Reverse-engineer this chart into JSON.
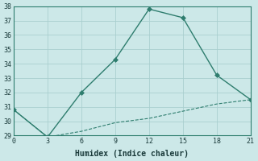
{
  "xlabel": "Humidex (Indice chaleur)",
  "xlim": [
    0,
    21
  ],
  "ylim": [
    29,
    38
  ],
  "xticks": [
    0,
    3,
    6,
    9,
    12,
    15,
    18,
    21
  ],
  "yticks": [
    29,
    30,
    31,
    32,
    33,
    34,
    35,
    36,
    37,
    38
  ],
  "line1_x": [
    0,
    3,
    6,
    9,
    12,
    15,
    18,
    21
  ],
  "line1_y": [
    30.8,
    28.9,
    32.0,
    34.3,
    37.8,
    37.2,
    33.2,
    31.5
  ],
  "line2_x": [
    0,
    3,
    6,
    9,
    12,
    15,
    18,
    21
  ],
  "line2_y": [
    30.8,
    28.9,
    29.3,
    29.9,
    30.2,
    30.7,
    31.2,
    31.5
  ],
  "line_color": "#2e7d6e",
  "bg_color": "#cce8e8",
  "grid_color": "#aacfcf",
  "font_color": "#1a3a3a",
  "tick_fontsize": 6,
  "xlabel_fontsize": 7
}
